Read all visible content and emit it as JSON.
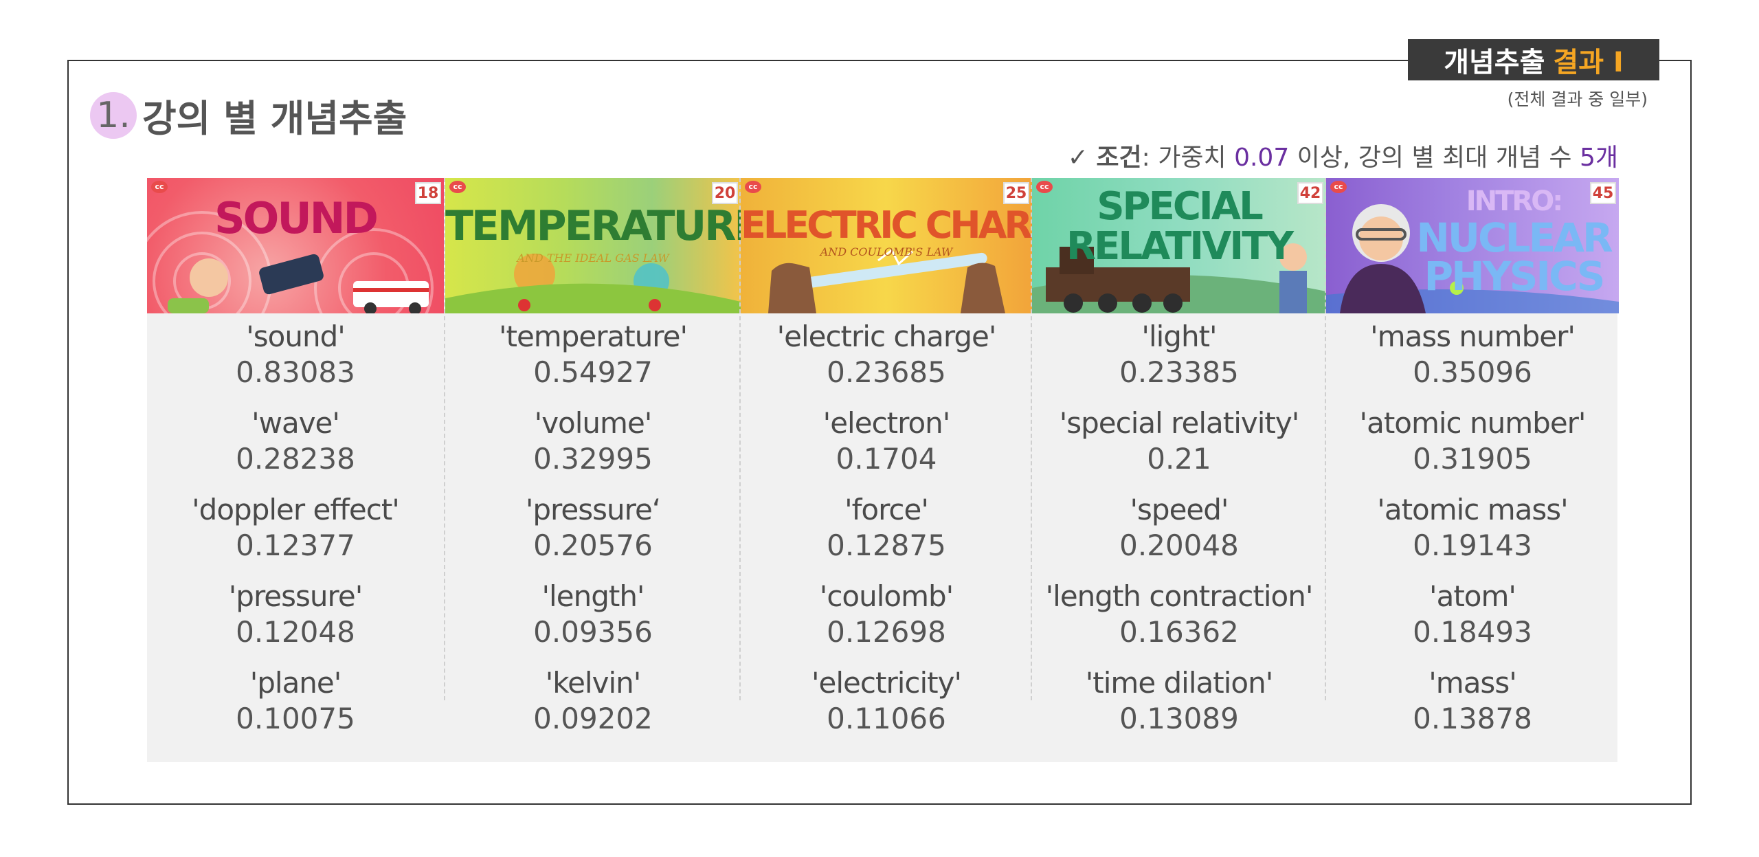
{
  "badge": {
    "main": "개념추출",
    "accent": "결과 I"
  },
  "note": "(전체 결과 중 일부)",
  "heading": {
    "number": "1.",
    "text": "강의 별 개념추출"
  },
  "condition": {
    "check": "✓",
    "label": "조건",
    "colon": ": 가중치 ",
    "weight_value": "0.07",
    "mid": " 이상,  강의 별 최대 개념 수 ",
    "max_count": "5개",
    "accent_color": "#6a2fa0"
  },
  "lectures": [
    {
      "thumb_title": "SOUND",
      "episode": "18",
      "logo": "cc",
      "concepts": [
        {
          "term": "'sound'",
          "weight": "0.83083"
        },
        {
          "term": "'wave'",
          "weight": "0.28238"
        },
        {
          "term": "'doppler effect'",
          "weight": "0.12377"
        },
        {
          "term": "'pressure'",
          "weight": "0.12048"
        },
        {
          "term": "'plane'",
          "weight": "0.10075"
        }
      ]
    },
    {
      "thumb_title": "TEMPERATURE",
      "thumb_sub": "AND THE IDEAL GAS LAW",
      "episode": "20",
      "logo": "cc",
      "concepts": [
        {
          "term": "'temperature'",
          "weight": "0.54927"
        },
        {
          "term": "'volume'",
          "weight": "0.32995"
        },
        {
          "term": "'pressure‘",
          "weight": "0.20576"
        },
        {
          "term": "'length'",
          "weight": "0.09356"
        },
        {
          "term": "'kelvin'",
          "weight": "0.09202"
        }
      ]
    },
    {
      "thumb_title": "ELECTRIC CHARGE",
      "thumb_sub": "AND COULOMB'S LAW",
      "episode": "25",
      "logo": "cc",
      "concepts": [
        {
          "term": "'electric charge'",
          "weight": "0.23685"
        },
        {
          "term": "'electron'",
          "weight": "0.1704"
        },
        {
          "term": "'force'",
          "weight": "0.12875"
        },
        {
          "term": "'coulomb'",
          "weight": "0.12698"
        },
        {
          "term": "'electricity'",
          "weight": "0.11066"
        }
      ]
    },
    {
      "thumb_title": "SPECIAL",
      "thumb_title2": "RELATIVITY",
      "episode": "42",
      "logo": "cc",
      "concepts": [
        {
          "term": "'light'",
          "weight": "0.23385"
        },
        {
          "term": "'special relativity'",
          "weight": "0.21"
        },
        {
          "term": "'speed'",
          "weight": "0.20048"
        },
        {
          "term": "'length contraction'",
          "weight": "0.16362"
        },
        {
          "term": "'time dilation'",
          "weight": "0.13089"
        }
      ]
    },
    {
      "thumb_title": "INTRO:",
      "thumb_title2": "NUCLEAR",
      "thumb_title3": "PHYSICS",
      "episode": "45",
      "logo": "cc",
      "concepts": [
        {
          "term": "'mass number'",
          "weight": "0.35096"
        },
        {
          "term": "'atomic number'",
          "weight": "0.31905"
        },
        {
          "term": "'atomic mass'",
          "weight": "0.19143"
        },
        {
          "term": "'atom'",
          "weight": "0.18493"
        },
        {
          "term": "'mass'",
          "weight": "0.13878"
        }
      ]
    }
  ]
}
